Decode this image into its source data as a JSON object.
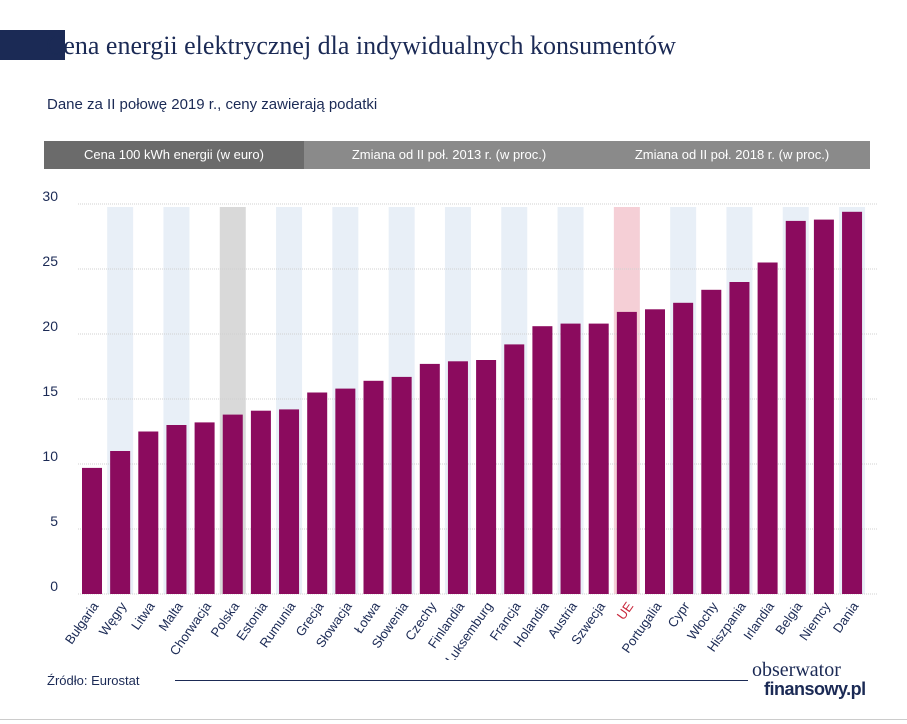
{
  "header": {
    "title": "Cena energii elektrycznej dla indywidualnych konsumentów",
    "subtitle": "Dane za II połowę 2019 r., ceny zawierają podatki"
  },
  "tabs": [
    {
      "label": "Cena 100 kWh energii (w euro)"
    },
    {
      "label": "Zmiana od II poł. 2013 r. (w proc.)"
    },
    {
      "label": "Zmiana od II poł. 2018 r. (w proc.)"
    }
  ],
  "footer": {
    "source": "Źródło: Eurostat",
    "logo_line1": "obserwator",
    "logo_line2": "finansowy.pl"
  },
  "chart_data": {
    "type": "bar",
    "categories": [
      "Bułgaria",
      "Węgry",
      "Litwa",
      "Malta",
      "Chorwacja",
      "Polska",
      "Estonia",
      "Rumunia",
      "Grecja",
      "Słowacja",
      "Łotwa",
      "Słowenia",
      "Czechy",
      "Finlandia",
      "Luksemburg",
      "Francja",
      "Holandia",
      "Austria",
      "Szwecja",
      "UE",
      "Portugalia",
      "Cypr",
      "Włochy",
      "Hiszpania",
      "Irlandia",
      "Belgia",
      "Niemcy",
      "Dania"
    ],
    "values": [
      9.7,
      11.0,
      12.5,
      13.0,
      13.2,
      13.8,
      14.1,
      14.2,
      15.5,
      15.8,
      16.4,
      16.7,
      17.7,
      17.9,
      18.0,
      19.2,
      20.6,
      20.8,
      20.8,
      21.7,
      21.9,
      22.4,
      23.4,
      24.0,
      25.5,
      28.7,
      28.8,
      29.4
    ],
    "yticks": [
      0,
      5,
      10,
      15,
      20,
      25,
      30
    ],
    "ylim": [
      0,
      30
    ],
    "bar_color": "#8b0b5e",
    "highlight": {
      "Polska": "#1b2a55",
      "UE": "#c8283c"
    },
    "shade_color": "#e8eff7",
    "shade_highlight": {
      "Polska": "#d9d9d9",
      "UE": "#f5cfd6"
    },
    "grid": true
  }
}
